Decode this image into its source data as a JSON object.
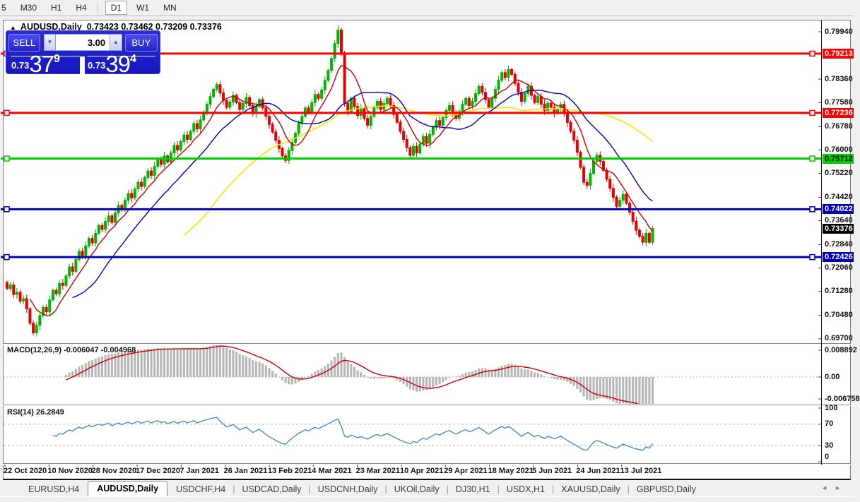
{
  "toolbar": {
    "timeframes": [
      {
        "label": "5",
        "active": false
      },
      {
        "label": "M30",
        "active": false
      },
      {
        "label": "H1",
        "active": false
      },
      {
        "label": "H4",
        "active": false
      },
      {
        "label": "D1",
        "active": true
      },
      {
        "label": "W1",
        "active": false
      },
      {
        "label": "MN",
        "active": false
      }
    ]
  },
  "chart_header": {
    "collapse_arrow": "▲",
    "symbol": "AUDUSD,Daily",
    "ohlc": "0.73423 0.73462 0.73209 0.73376"
  },
  "trade_panel": {
    "sell_label": "SELL",
    "buy_label": "BUY",
    "volume": "3.00",
    "spin_down": "▼",
    "spin_up": "▲",
    "sell_prefix": "0.73",
    "sell_big": "37",
    "sell_sup": "9",
    "buy_prefix": "0.73",
    "buy_big": "39",
    "buy_sup": "4"
  },
  "price_axis": {
    "labels": [
      "0.79940",
      "0.78360",
      "0.77580",
      "0.76780",
      "0.76000",
      "0.75220",
      "0.74420",
      "0.73640",
      "0.72840",
      "0.72060",
      "0.71280",
      "0.70480",
      "0.69700"
    ]
  },
  "levels": [
    {
      "price": 0.79213,
      "label": "0.79213",
      "color": "#ff0000",
      "text_color": "#ffffff",
      "thickness": 3
    },
    {
      "price": 0.77236,
      "label": "0.77236",
      "color": "#ff0000",
      "text_color": "#ffffff",
      "thickness": 3
    },
    {
      "price": 0.75712,
      "label": "0.75712",
      "color": "#00cc00",
      "text_color": "#000000",
      "thickness": 3
    },
    {
      "price": 0.74022,
      "label": "0.74022",
      "color": "#0000bb",
      "text_color": "#ffffff",
      "thickness": 3
    },
    {
      "price": 0.72426,
      "label": "0.72426",
      "color": "#0000bb",
      "text_color": "#ffffff",
      "thickness": 3
    }
  ],
  "current_price": {
    "price": 0.73376,
    "label": "0.73376",
    "bg": "#000000",
    "text_color": "#ffffff"
  },
  "macd_panel": {
    "label": "MACD(12,26,9) -0.006047 -0.004968",
    "scale_top": "0.008892",
    "scale_zero": "0.00",
    "scale_bottom": "-0.006758"
  },
  "rsi_panel": {
    "label": "RSI(14) 26.2849",
    "scale": [
      "100",
      "70",
      "30",
      "0"
    ],
    "guide_levels": [
      70,
      30
    ]
  },
  "time_axis": {
    "dates": [
      "22 Oct 2020",
      "10 Nov 2020",
      "28 Nov 2020",
      "17 Dec 2020",
      "7 Jan 2021",
      "26 Jan 2021",
      "13 Feb 2021",
      "4 Mar 2021",
      "23 Mar 2021",
      "10 Apr 2021",
      "29 Apr 2021",
      "18 May 2021",
      "5 Jun 2021",
      "24 Jun 2021",
      "13 Jul 2021"
    ]
  },
  "tabs": {
    "items": [
      {
        "label": "EURUSD,H4",
        "active": false
      },
      {
        "label": "AUDUSD,Daily",
        "active": true
      },
      {
        "label": "USDCHF,H4",
        "active": false
      },
      {
        "label": "USDCAD,Daily",
        "active": false
      },
      {
        "label": "USDCNH,Daily",
        "active": false
      },
      {
        "label": "UKOil,Daily",
        "active": false
      },
      {
        "label": "DJ30,H1",
        "active": false
      },
      {
        "label": "USDX,H1",
        "active": false
      },
      {
        "label": "XAUUSD,Daily",
        "active": false
      },
      {
        "label": "GBPUSD,Daily",
        "active": false
      }
    ],
    "scroll_left": "◄",
    "scroll_right": "►"
  },
  "chart_data": {
    "type": "candlestick",
    "symbol": "AUDUSD",
    "timeframe": "Daily",
    "y_range": [
      0.69556,
      0.80317
    ],
    "ma_periods": {
      "fast": 8,
      "mid": 21,
      "slow": 55
    },
    "macd_params": [
      12,
      26,
      9
    ],
    "rsi_period": 14,
    "colors": {
      "candle_up": "#00b400",
      "candle_down": "#e60000",
      "ma_fast": "#cc0000",
      "ma_mid": "#0000bb",
      "ma_slow": "#ffe400",
      "macd_bar": "#b5b5b5",
      "macd_signal": "#cc0000",
      "rsi_line": "#3d85c6",
      "guide_dash": "#b0b0b0"
    },
    "closes": [
      0.7138,
      0.715,
      0.7118,
      0.7125,
      0.7096,
      0.7104,
      0.707,
      0.7022,
      0.699,
      0.7015,
      0.7048,
      0.7075,
      0.706,
      0.71,
      0.7132,
      0.712,
      0.7155,
      0.7148,
      0.718,
      0.721,
      0.7195,
      0.7235,
      0.7262,
      0.7248,
      0.728,
      0.7305,
      0.729,
      0.7322,
      0.7348,
      0.7335,
      0.7362,
      0.738,
      0.7358,
      0.739,
      0.7415,
      0.74,
      0.7432,
      0.7455,
      0.744,
      0.747,
      0.7492,
      0.7478,
      0.7508,
      0.753,
      0.7515,
      0.7545,
      0.7568,
      0.7552,
      0.758,
      0.756,
      0.759,
      0.7615,
      0.76,
      0.7628,
      0.765,
      0.7635,
      0.7662,
      0.7688,
      0.767,
      0.77,
      0.7725,
      0.7752,
      0.7778,
      0.7802,
      0.7818,
      0.779,
      0.7765,
      0.7742,
      0.776,
      0.7782,
      0.7758,
      0.7735,
      0.7755,
      0.7775,
      0.7748,
      0.7722,
      0.7745,
      0.7768,
      0.774,
      0.7712,
      0.7685,
      0.766,
      0.7632,
      0.7605,
      0.758,
      0.7565,
      0.7598,
      0.7625,
      0.7655,
      0.7688,
      0.7712,
      0.774,
      0.7726,
      0.7758,
      0.7785,
      0.7772,
      0.78,
      0.7832,
      0.7865,
      0.7905,
      0.7955,
      0.8,
      0.792,
      0.7755,
      0.7728,
      0.7772,
      0.7745,
      0.7715,
      0.7738,
      0.7705,
      0.7682,
      0.7712,
      0.7742,
      0.7762,
      0.7735,
      0.7755,
      0.7772,
      0.7748,
      0.7718,
      0.7692,
      0.7662,
      0.7635,
      0.7608,
      0.7582,
      0.7612,
      0.759,
      0.762,
      0.7645,
      0.7622,
      0.7652,
      0.7675,
      0.7698,
      0.7682,
      0.7708,
      0.7732,
      0.7748,
      0.7725,
      0.7705,
      0.7728,
      0.7752,
      0.7772,
      0.7748,
      0.7762,
      0.7788,
      0.7812,
      0.7792,
      0.7768,
      0.7742,
      0.7772,
      0.7802,
      0.7832,
      0.7858,
      0.7842,
      0.7868,
      0.7852,
      0.7822,
      0.7792,
      0.7762,
      0.7788,
      0.7812,
      0.7782,
      0.7758,
      0.7778,
      0.7752,
      0.7732,
      0.7756,
      0.7742,
      0.7722,
      0.7736,
      0.7752,
      0.7722,
      0.7692,
      0.7662,
      0.7632,
      0.7592,
      0.7542,
      0.7492,
      0.7482,
      0.7522,
      0.7562,
      0.7582,
      0.7562,
      0.7532,
      0.7502,
      0.7472,
      0.7442,
      0.7412,
      0.7432,
      0.7452,
      0.7422,
      0.7392,
      0.7362,
      0.7332,
      0.7312,
      0.7292,
      0.7322,
      0.7292,
      0.7338
    ]
  }
}
